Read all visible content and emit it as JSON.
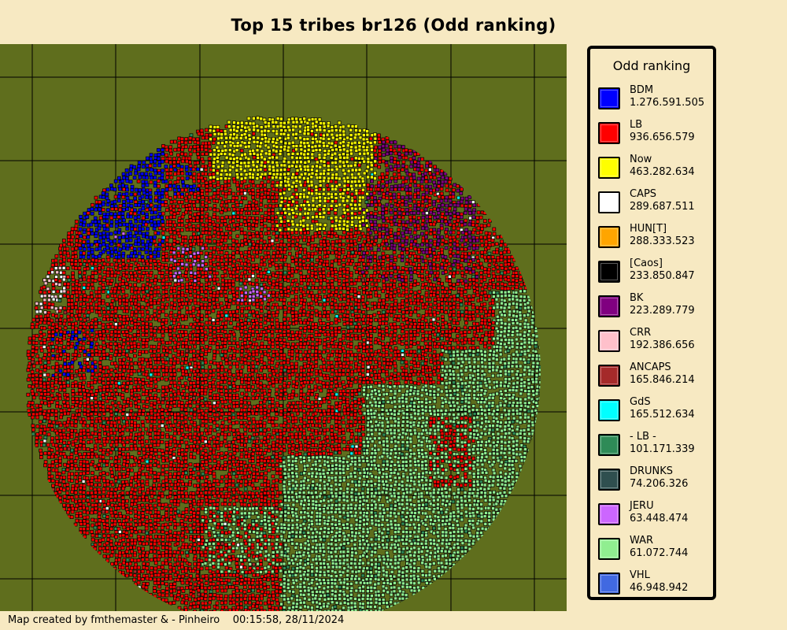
{
  "title": "Top 15 tribes br126 (Odd ranking)",
  "legend": {
    "title": "Odd ranking",
    "items": [
      {
        "name": "BDM",
        "points": "1.276.591.505",
        "color": "#0000ff"
      },
      {
        "name": "LB",
        "points": "936.656.579",
        "color": "#ff0000"
      },
      {
        "name": "Now",
        "points": "463.282.634",
        "color": "#ffff00"
      },
      {
        "name": "CAPS",
        "points": "289.687.511",
        "color": "#ffffff"
      },
      {
        "name": "HUN[T]",
        "points": "288.333.523",
        "color": "#ffa500"
      },
      {
        "name": "[Caos]",
        "points": "233.850.847",
        "color": "#000000"
      },
      {
        "name": "BK",
        "points": "223.289.779",
        "color": "#800080"
      },
      {
        "name": "CRR",
        "points": "192.386.656",
        "color": "#ffc0cb"
      },
      {
        "name": "ANCAPS",
        "points": "165.846.214",
        "color": "#a52a2a"
      },
      {
        "name": "GdS",
        "points": "165.512.634",
        "color": "#00ffff"
      },
      {
        "name": "- LB -",
        "points": "101.171.339",
        "color": "#2e8b57"
      },
      {
        "name": "DRUNKS",
        "points": "74.206.326",
        "color": "#2f4f4f"
      },
      {
        "name": "JERU",
        "points": "63.448.474",
        "color": "#cc66ff"
      },
      {
        "name": "WAR",
        "points": "61.072.744",
        "color": "#90ee90"
      },
      {
        "name": "VHL",
        "points": "46.948.942",
        "color": "#4169e1"
      }
    ]
  },
  "footer": {
    "credit": "Map created by fmthemaster & - Pinheiro",
    "timestamp": "00:15:58, 28/11/2024"
  },
  "map": {
    "background_color": "#5f6e1d",
    "grid_color": "#000000"
  }
}
